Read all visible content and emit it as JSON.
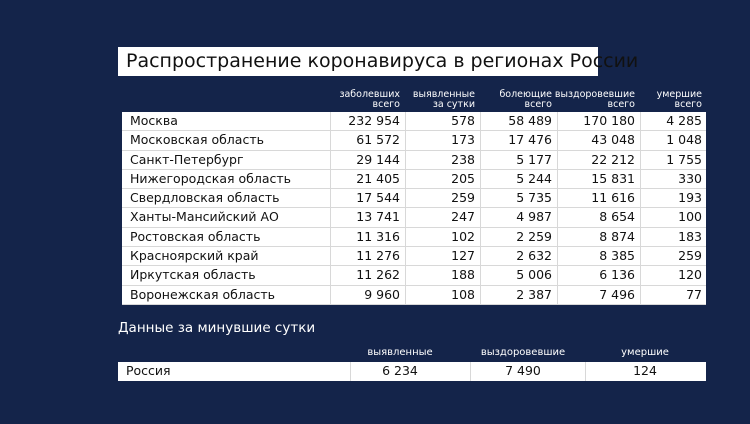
{
  "title": "Распространение коронавируса в регионах России",
  "table": {
    "headers": [
      "заболевших\nвсего",
      "выявленные\nза сутки",
      "болеющие\nвсего",
      "выздоровевшие\nвсего",
      "умершие\nвсего"
    ],
    "rows": [
      [
        "Москва",
        "232 954",
        "578",
        "58 489",
        "170 180",
        "4 285"
      ],
      [
        "Московская область",
        "61 572",
        "173",
        "17 476",
        "43 048",
        "1 048"
      ],
      [
        "Санкт-Петербург",
        "29 144",
        "238",
        "5 177",
        "22 212",
        "1 755"
      ],
      [
        "Нижегородская область",
        "21 405",
        "205",
        "5 244",
        "15 831",
        "330"
      ],
      [
        "Свердловская область",
        "17 544",
        "259",
        "5 735",
        "11 616",
        "193"
      ],
      [
        "Ханты-Мансийский АО",
        "13 741",
        "247",
        "4 987",
        "8 654",
        "100"
      ],
      [
        "Ростовская область",
        "11 316",
        "102",
        "2 259",
        "8 874",
        "183"
      ],
      [
        "Красноярский край",
        "11 276",
        "127",
        "2 632",
        "8 385",
        "259"
      ],
      [
        "Иркутская область",
        "11 262",
        "188",
        "5 006",
        "6 136",
        "120"
      ],
      [
        "Воронежская область",
        "9 960",
        "108",
        "2 387",
        "7 496",
        "77"
      ]
    ]
  },
  "summary": {
    "title": "Данные за минувшие сутки",
    "headers": [
      "выявленные",
      "выздоровевшие",
      "умершие"
    ],
    "row": [
      "Россия",
      "6 234",
      "7 490",
      "124"
    ]
  }
}
